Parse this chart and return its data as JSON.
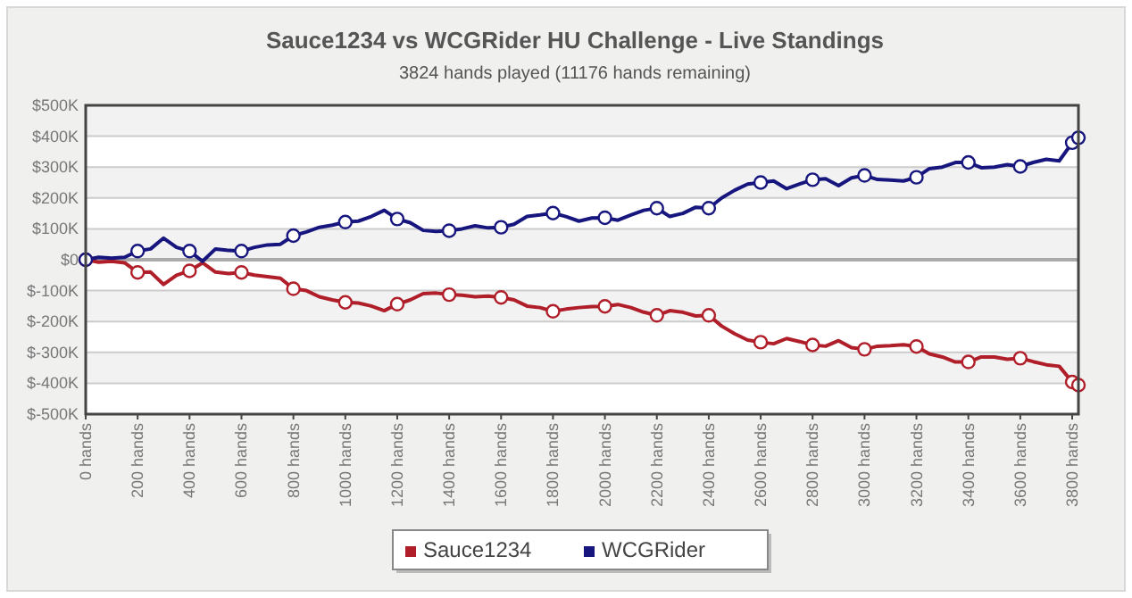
{
  "chart_data": {
    "type": "line",
    "title": "Sauce1234 vs WCGRider HU Challenge - Live Standings",
    "subtitle": "3824 hands played (11176 hands remaining)",
    "x": [
      0,
      50,
      100,
      150,
      200,
      250,
      300,
      350,
      400,
      450,
      500,
      550,
      600,
      650,
      700,
      750,
      800,
      850,
      900,
      950,
      1000,
      1050,
      1100,
      1150,
      1200,
      1250,
      1300,
      1350,
      1400,
      1450,
      1500,
      1550,
      1600,
      1650,
      1700,
      1750,
      1800,
      1850,
      1900,
      1950,
      2000,
      2050,
      2100,
      2150,
      2200,
      2250,
      2300,
      2350,
      2400,
      2450,
      2500,
      2550,
      2600,
      2650,
      2700,
      2750,
      2800,
      2850,
      2900,
      2950,
      3000,
      3050,
      3100,
      3150,
      3200,
      3250,
      3300,
      3350,
      3400,
      3450,
      3500,
      3550,
      3600,
      3650,
      3700,
      3750,
      3800,
      3824
    ],
    "series": [
      {
        "name": "Sauce1234",
        "color": "#b01e2a",
        "values": [
          0,
          -8,
          -5,
          -10,
          -41,
          -40,
          -80,
          -50,
          -36,
          -10,
          -40,
          -45,
          -41,
          -50,
          -55,
          -60,
          -94,
          -100,
          -120,
          -130,
          -138,
          -140,
          -150,
          -165,
          -144,
          -130,
          -110,
          -108,
          -113,
          -115,
          -120,
          -118,
          -122,
          -130,
          -150,
          -155,
          -167,
          -160,
          -155,
          -152,
          -151,
          -145,
          -155,
          -170,
          -180,
          -165,
          -170,
          -182,
          -180,
          -215,
          -240,
          -260,
          -267,
          -272,
          -255,
          -265,
          -276,
          -280,
          -262,
          -285,
          -290,
          -280,
          -278,
          -275,
          -281,
          -305,
          -315,
          -331,
          -331,
          -315,
          -315,
          -322,
          -319,
          -330,
          -340,
          -345,
          -396,
          -406
        ]
      },
      {
        "name": "WCGRider",
        "color": "#16167e",
        "values": [
          0,
          8,
          5,
          8,
          28,
          35,
          70,
          40,
          28,
          -5,
          35,
          30,
          28,
          40,
          48,
          50,
          78,
          90,
          105,
          112,
          122,
          125,
          140,
          160,
          132,
          120,
          95,
          92,
          94,
          100,
          110,
          103,
          105,
          115,
          140,
          145,
          151,
          140,
          125,
          135,
          136,
          128,
          145,
          160,
          167,
          140,
          150,
          170,
          167,
          200,
          225,
          245,
          250,
          255,
          230,
          245,
          259,
          262,
          240,
          265,
          273,
          260,
          258,
          255,
          267,
          295,
          300,
          315,
          315,
          298,
          300,
          308,
          302,
          315,
          325,
          320,
          379,
          395
        ]
      },
      {
        "type": "scatter",
        "marker": "circle",
        "color": "#b01e2a",
        "x": [
          0,
          200,
          400,
          600,
          800,
          1000,
          1200,
          1400,
          1600,
          1800,
          2000,
          2200,
          2400,
          2600,
          2800,
          3000,
          3200,
          3400,
          3600,
          3800,
          3824
        ],
        "values": [
          0,
          -41,
          -36,
          -41,
          -94,
          -138,
          -144,
          -113,
          -122,
          -167,
          -151,
          -180,
          -180,
          -267,
          -276,
          -290,
          -281,
          -331,
          -319,
          -396,
          -406
        ]
      },
      {
        "type": "scatter",
        "marker": "circle",
        "color": "#16167e",
        "x": [
          0,
          200,
          400,
          600,
          800,
          1000,
          1200,
          1400,
          1600,
          1800,
          2000,
          2200,
          2400,
          2600,
          2800,
          3000,
          3200,
          3400,
          3600,
          3800,
          3824
        ],
        "values": [
          0,
          28,
          28,
          28,
          78,
          122,
          132,
          94,
          105,
          151,
          136,
          167,
          167,
          250,
          259,
          273,
          267,
          315,
          302,
          379,
          395
        ]
      }
    ],
    "xlim": [
      0,
      3824
    ],
    "xticks": [
      {
        "value": 0,
        "label": "0 hands"
      },
      {
        "value": 200,
        "label": "200 hands"
      },
      {
        "value": 400,
        "label": "400 hands"
      },
      {
        "value": 600,
        "label": "600 hands"
      },
      {
        "value": 800,
        "label": "800 hands"
      },
      {
        "value": 1000,
        "label": "1000 hands"
      },
      {
        "value": 1200,
        "label": "1200 hands"
      },
      {
        "value": 1400,
        "label": "1400 hands"
      },
      {
        "value": 1600,
        "label": "1600 hands"
      },
      {
        "value": 1800,
        "label": "1800 hands"
      },
      {
        "value": 2000,
        "label": "2000 hands"
      },
      {
        "value": 2200,
        "label": "2200 hands"
      },
      {
        "value": 2400,
        "label": "2400 hands"
      },
      {
        "value": 2600,
        "label": "2600 hands"
      },
      {
        "value": 2800,
        "label": "2800 hands"
      },
      {
        "value": 3000,
        "label": "3000 hands"
      },
      {
        "value": 3200,
        "label": "3200 hands"
      },
      {
        "value": 3400,
        "label": "3400 hands"
      },
      {
        "value": 3600,
        "label": "3600 hands"
      },
      {
        "value": 3800,
        "label": "3800 hands"
      }
    ],
    "ylim": [
      -500,
      500
    ],
    "yticks": [
      {
        "value": -500,
        "label": "$-500K"
      },
      {
        "value": -400,
        "label": "$-400K"
      },
      {
        "value": -300,
        "label": "$-300K"
      },
      {
        "value": -200,
        "label": "$-200K"
      },
      {
        "value": -100,
        "label": "$-100K"
      },
      {
        "value": 0,
        "label": "$0"
      },
      {
        "value": 100,
        "label": "$100K"
      },
      {
        "value": 200,
        "label": "$200K"
      },
      {
        "value": 300,
        "label": "$300K"
      },
      {
        "value": 400,
        "label": "$400K"
      },
      {
        "value": 500,
        "label": "$500K"
      }
    ],
    "grid": "y",
    "legend": "bottom",
    "line_style": "solid"
  }
}
